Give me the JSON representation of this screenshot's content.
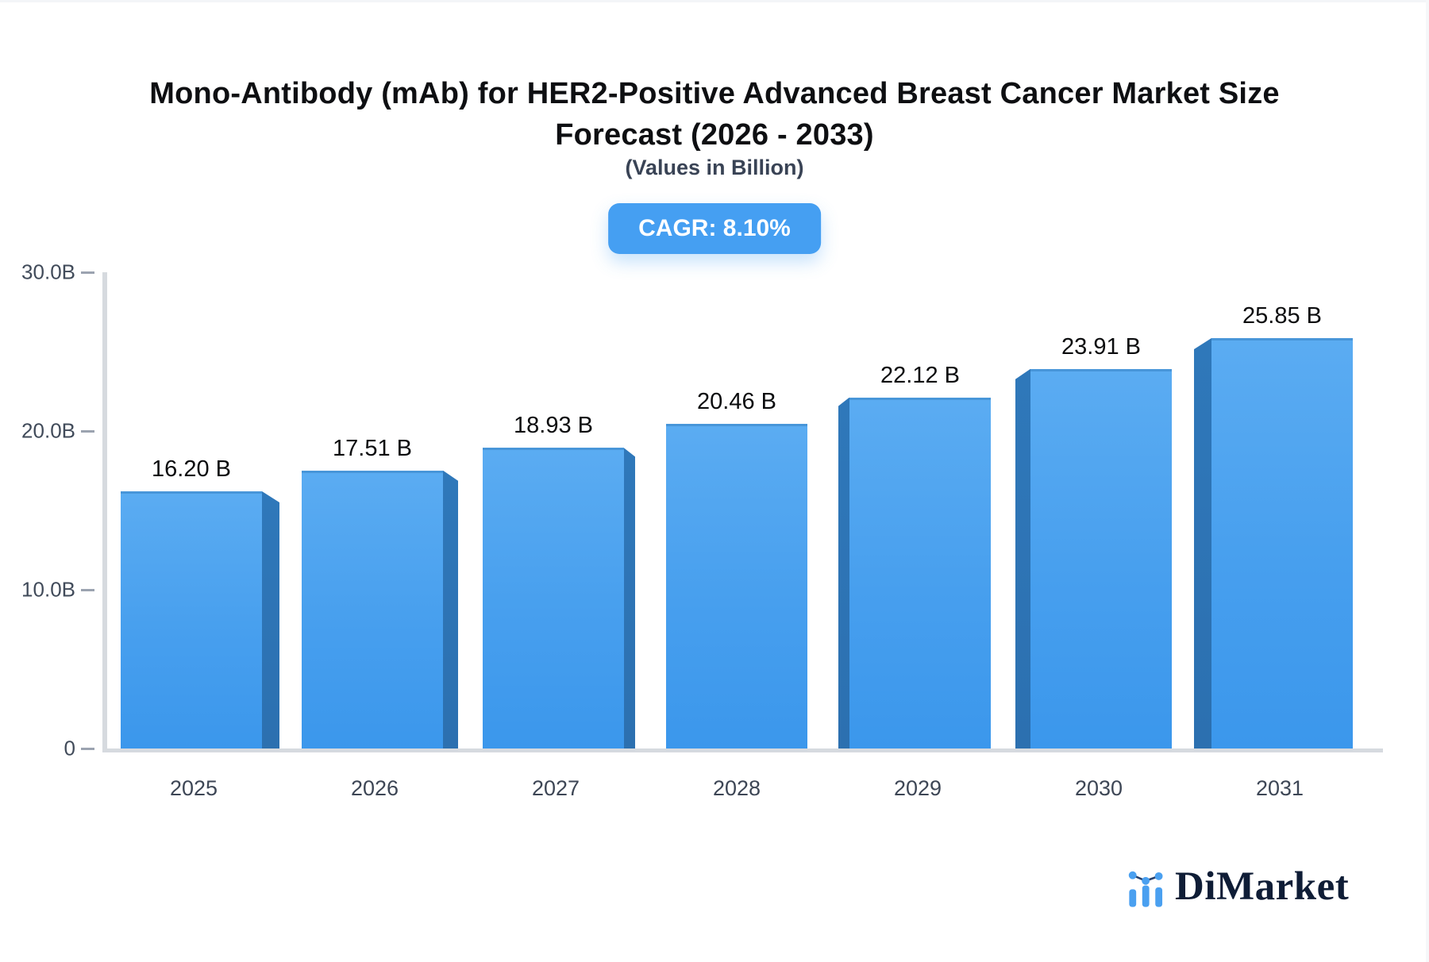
{
  "header": {
    "title_line1": "Mono-Antibody (mAb) for HER2-Positive Advanced Breast Cancer Market Size",
    "title_line2": "Forecast (2026 - 2033)",
    "subtitle": "(Values in Billion)",
    "cagr_badge": "CAGR: 8.10%"
  },
  "chart_data": {
    "type": "bar",
    "title": "Mono-Antibody (mAb) for HER2-Positive Advanced Breast Cancer Market Size Forecast (2026 - 2033)",
    "subtitle": "(Values in Billion)",
    "cagr": "8.10%",
    "categories": [
      "2025",
      "2026",
      "2027",
      "2028",
      "2029",
      "2030",
      "2031"
    ],
    "values": [
      16.2,
      17.51,
      18.93,
      20.46,
      22.12,
      23.91,
      25.85
    ],
    "value_labels": [
      "16.20 B",
      "17.51 B",
      "18.93 B",
      "20.46 B",
      "22.12 B",
      "23.91 B",
      "25.85 B"
    ],
    "xlabel": "",
    "ylabel": "",
    "ylim": [
      0,
      30
    ],
    "y_ticks": [
      {
        "label": "30.0B",
        "value": 30
      },
      {
        "label": "20.0B",
        "value": 20
      },
      {
        "label": "10.0B",
        "value": 10
      },
      {
        "label": "0",
        "value": 0
      }
    ],
    "grid": false,
    "legend": "none",
    "bar_face_color": "#4aa2ef",
    "bar_side_color": "#2e76b8",
    "effect_3d": true
  },
  "footer": {
    "brand": "DiMarket"
  },
  "colors": {
    "accent_blue": "#459ff2",
    "bar_blue": "#4aa2ef",
    "bar_dark_blue": "#2e76b8",
    "axis_gray": "#d6dadf",
    "tick_gray": "#9ba3b0",
    "label_slate": "#3d4655",
    "brand_navy": "#0f1d36"
  }
}
